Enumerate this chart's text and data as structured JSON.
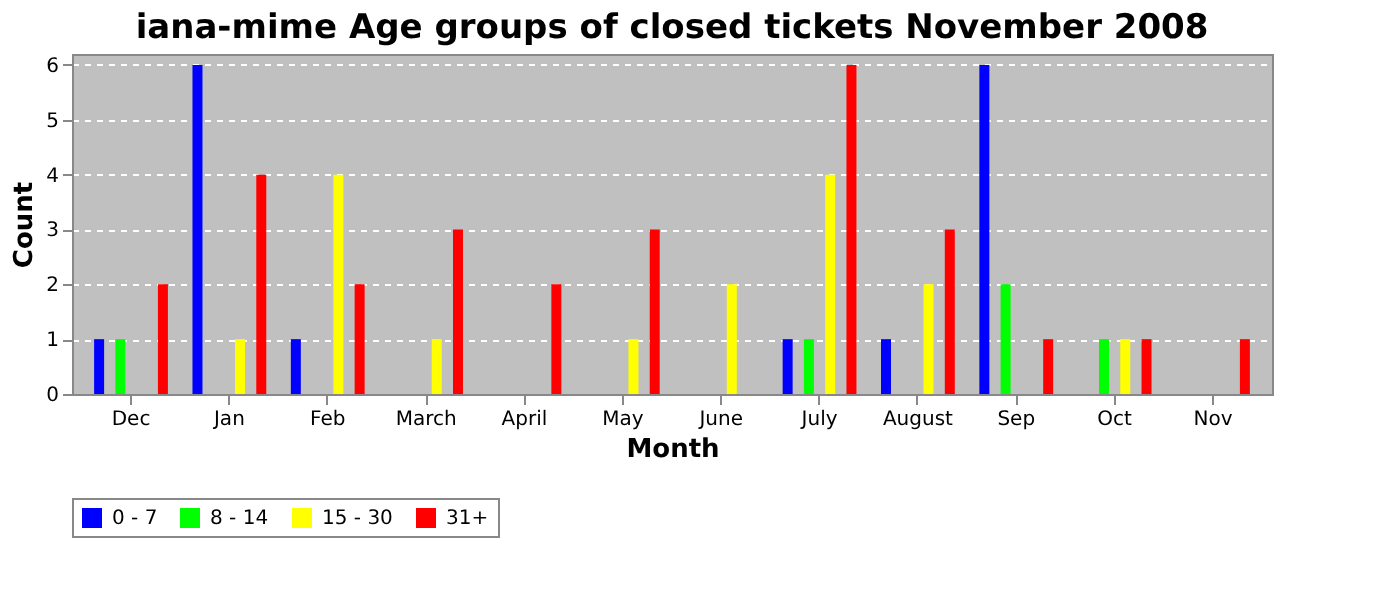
{
  "chart_data": {
    "type": "bar",
    "title": "iana-mime Age groups of closed tickets November 2008",
    "xlabel": "Month",
    "ylabel": "Count",
    "categories": [
      "Dec",
      "Jan",
      "Feb",
      "March",
      "April",
      "May",
      "June",
      "July",
      "August",
      "Sep",
      "Oct",
      "Nov"
    ],
    "series": [
      {
        "name": "0 - 7",
        "color": "#0000ff",
        "values": [
          1,
          6,
          1,
          0,
          0,
          0,
          0,
          1,
          1,
          6,
          0,
          0
        ]
      },
      {
        "name": "8 - 14",
        "color": "#00ff00",
        "values": [
          1,
          0,
          0,
          0,
          0,
          0,
          0,
          1,
          0,
          2,
          1,
          0
        ]
      },
      {
        "name": "15 - 30",
        "color": "#ffff00",
        "values": [
          0,
          1,
          4,
          1,
          0,
          1,
          2,
          4,
          2,
          0,
          1,
          0
        ]
      },
      {
        "name": "31+",
        "color": "#ff0000",
        "values": [
          2,
          4,
          2,
          3,
          2,
          3,
          0,
          6,
          3,
          1,
          1,
          1
        ]
      }
    ],
    "ylim": [
      0,
      6.2
    ],
    "yticks": [
      0,
      1,
      2,
      3,
      4,
      5,
      6
    ],
    "grid": "y",
    "legend": "bottom"
  }
}
